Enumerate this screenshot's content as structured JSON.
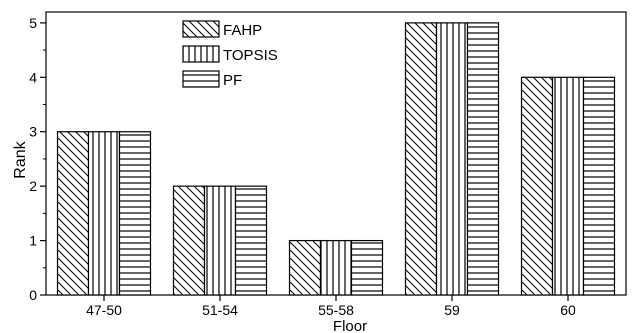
{
  "chart_data": {
    "type": "bar",
    "xlabel": "Floor",
    "ylabel": "Rank",
    "categories": [
      "47-50",
      "51-54",
      "55-58",
      "59",
      "60"
    ],
    "ylim": [
      0,
      5.2
    ],
    "yticks": [
      0,
      1,
      2,
      3,
      4,
      5
    ],
    "grid": false,
    "legend_position": "top-center",
    "series": [
      {
        "name": "FAHP",
        "pattern": "diagonal-hatch",
        "values": [
          3,
          2,
          1,
          5,
          4
        ]
      },
      {
        "name": "TOPSIS",
        "pattern": "vertical-hatch",
        "values": [
          3,
          2,
          1,
          5,
          4
        ]
      },
      {
        "name": "PF",
        "pattern": "horizontal-hatch",
        "values": [
          3,
          2,
          1,
          5,
          4
        ]
      }
    ]
  }
}
